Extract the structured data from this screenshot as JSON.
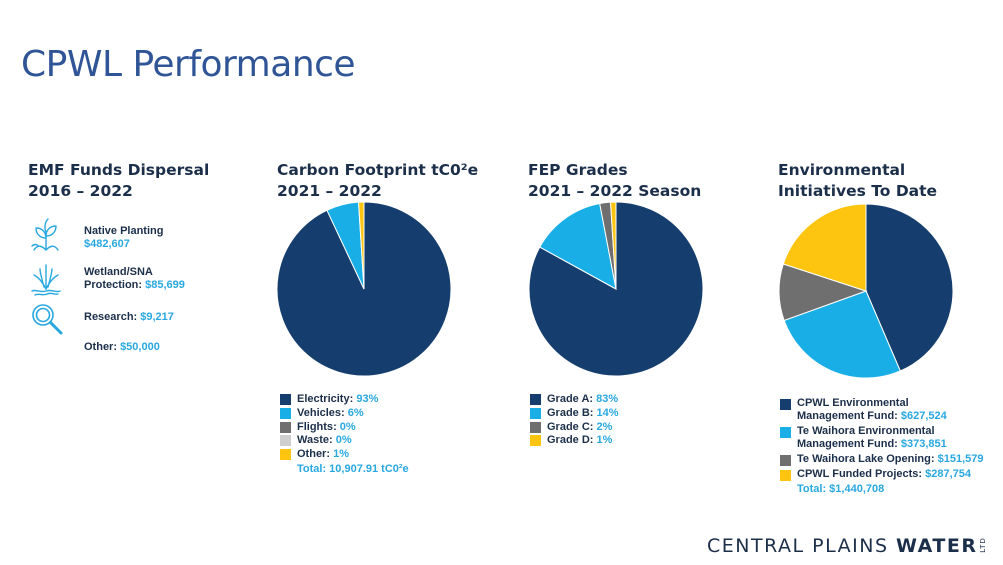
{
  "page": {
    "title": "CPWL Performance"
  },
  "colors": {
    "navy": "#153e6e",
    "blue": "#19aee6",
    "gray": "#6f6f6f",
    "light_gray": "#cfcfcf",
    "yellow": "#fdc50f",
    "text_dark": "#1c2f4a",
    "text_accent": "#29a8e0",
    "title_blue": "#2f5597"
  },
  "emf": {
    "title_line1": "EMF Funds Dispersal",
    "title_line2": "2016 – 2022",
    "items": [
      {
        "icon": "plant-icon",
        "label": "Native Planting",
        "amount": "$482,607"
      },
      {
        "icon": "wetland-icon",
        "label": "Wetland/SNA",
        "label2": "Protection:",
        "amount": "$85,699"
      },
      {
        "icon": "magnifier-icon",
        "label": "Research:",
        "amount": "$9,217"
      },
      {
        "icon": "",
        "label": "Other:",
        "amount": "$50,000"
      }
    ]
  },
  "chart_data": [
    {
      "type": "pie",
      "title": "Carbon Footprint tC0²e 2021 – 2022",
      "title_line1": "Carbon Footprint tC0²e",
      "title_line2": "2021 – 2022",
      "categories": [
        "Electricity",
        "Vehicles",
        "Flights",
        "Waste",
        "Other"
      ],
      "values": [
        93,
        6,
        0,
        0,
        1
      ],
      "labels": [
        "93%",
        "6%",
        "0%",
        "0%",
        "1%"
      ],
      "colors": [
        "#153e6e",
        "#19aee6",
        "#6f6f6f",
        "#cfcfcf",
        "#fdc50f"
      ],
      "total": "Total: 10,907.91 tC0²e"
    },
    {
      "type": "pie",
      "title": "FEP Grades 2021 – 2022 Season",
      "title_line1": "FEP Grades",
      "title_line2": "2021 – 2022 Season",
      "categories": [
        "Grade A",
        "Grade B",
        "Grade C",
        "Grade D"
      ],
      "values": [
        83,
        14,
        2,
        1
      ],
      "labels": [
        "83%",
        "14%",
        "2%",
        "1%"
      ],
      "colors": [
        "#153e6e",
        "#19aee6",
        "#6f6f6f",
        "#fdc50f"
      ]
    },
    {
      "type": "pie",
      "title": "Environmental Initiatives To Date",
      "title_line1": "Environmental",
      "title_line2": "Initiatives To Date",
      "categories": [
        "CPWL Environmental Management Fund",
        "Te Waihora Environmental Management Fund",
        "Te Waihora Lake Opening",
        "CPWL Funded Projects"
      ],
      "values": [
        627524,
        373851,
        151579,
        287754
      ],
      "legend_labels": [
        "CPWL Environmental Management Fund:",
        "Te Waihora Environmental Management Fund:",
        "Te Waihora Lake Opening:",
        "CPWL Funded Projects:"
      ],
      "labels": [
        "$627,524",
        "$373,851",
        "$151,579",
        "$287,754"
      ],
      "colors": [
        "#153e6e",
        "#19aee6",
        "#6f6f6f",
        "#fdc50f"
      ],
      "total": "Total: $1,440,708"
    }
  ],
  "logo": {
    "text_regular": "CENTRAL PLAINS ",
    "text_bold": "WATER",
    "suffix": "LTD"
  }
}
